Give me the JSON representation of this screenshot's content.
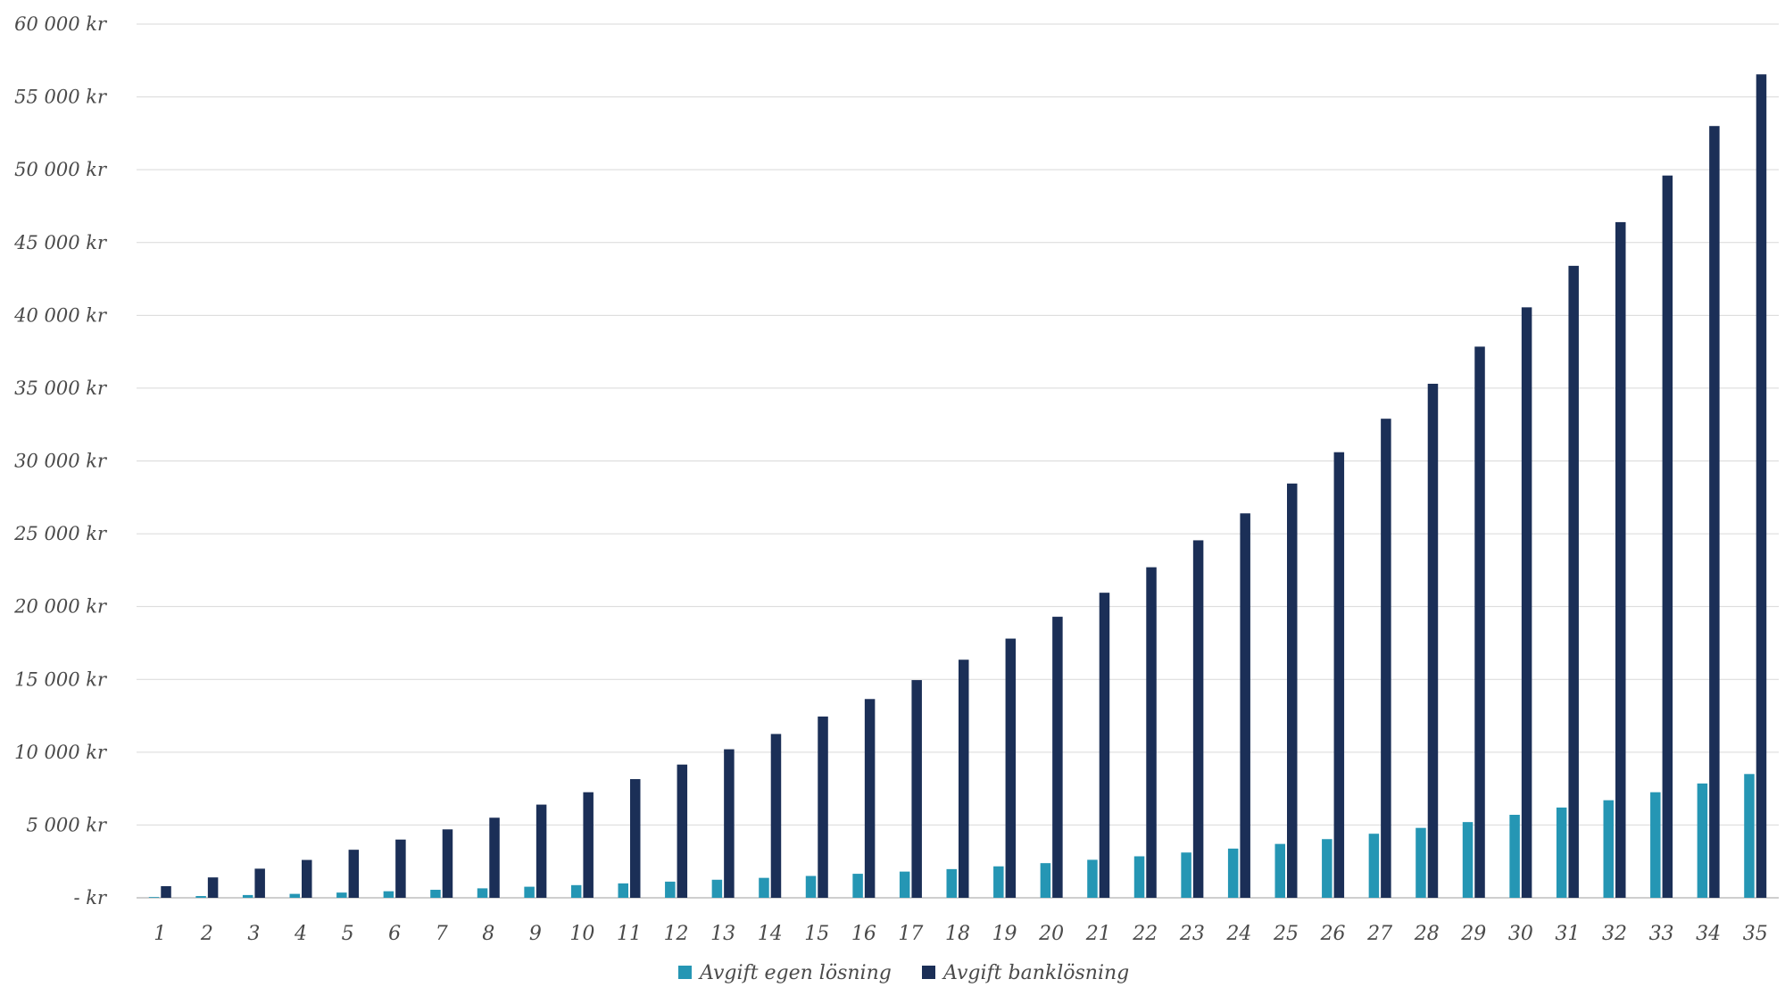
{
  "chart_data": {
    "type": "bar",
    "title": "",
    "xlabel": "",
    "ylabel": "",
    "ylim": [
      0,
      60000
    ],
    "yticks": [
      0,
      5000,
      10000,
      15000,
      20000,
      25000,
      30000,
      35000,
      40000,
      45000,
      50000,
      55000,
      60000
    ],
    "ytick_labels": [
      "-  kr",
      "5 000 kr",
      "10 000 kr",
      "15 000 kr",
      "20 000 kr",
      "25 000 kr",
      "30 000 kr",
      "35 000 kr",
      "40 000 kr",
      "45 000 kr",
      "50 000 kr",
      "55 000 kr",
      "60 000 kr"
    ],
    "grid": true,
    "legend_position": "bottom",
    "categories": [
      "1",
      "2",
      "3",
      "4",
      "5",
      "6",
      "7",
      "8",
      "9",
      "10",
      "11",
      "12",
      "13",
      "14",
      "15",
      "16",
      "17",
      "18",
      "19",
      "20",
      "21",
      "22",
      "23",
      "24",
      "25",
      "26",
      "27",
      "28",
      "29",
      "30",
      "31",
      "32",
      "33",
      "34",
      "35"
    ],
    "series": [
      {
        "name": "Avgift egen lösning",
        "color": "#2596b4",
        "values": [
          50,
          120,
          190,
          270,
          360,
          450,
          550,
          650,
          760,
          870,
          990,
          1110,
          1240,
          1370,
          1500,
          1650,
          1800,
          1970,
          2160,
          2380,
          2610,
          2850,
          3110,
          3380,
          3700,
          4030,
          4400,
          4800,
          5200,
          5700,
          6200,
          6700,
          7250,
          7850,
          8500
        ]
      },
      {
        "name": "Avgift banklösning",
        "color": "#1b2f57",
        "values": [
          800,
          1400,
          2000,
          2600,
          3300,
          4000,
          4700,
          5500,
          6400,
          7250,
          8150,
          9150,
          10200,
          11250,
          12450,
          13650,
          14950,
          16350,
          17800,
          19300,
          20950,
          22700,
          24550,
          26400,
          28450,
          30600,
          32900,
          35300,
          37850,
          40550,
          43400,
          46400,
          49600,
          53000,
          56550
        ]
      }
    ]
  }
}
